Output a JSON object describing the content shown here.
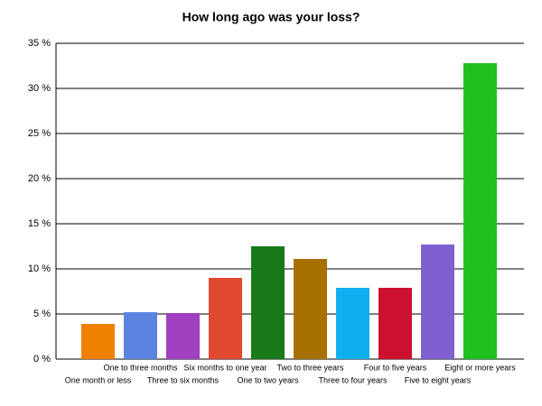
{
  "chart_data": {
    "type": "bar",
    "title": "How long ago was your loss?",
    "categories": [
      "One month or less",
      "One to three months",
      "Three to six months",
      "Six months to one year",
      "One to two years",
      "Two to three years",
      "Three to four years",
      "Four to five years",
      "Five to eight years",
      "Eight or more years"
    ],
    "values": [
      3.9,
      5.2,
      5.1,
      9.0,
      12.5,
      11.1,
      7.9,
      7.9,
      12.7,
      32.8
    ],
    "colors": [
      "#f08000",
      "#5a84e0",
      "#a040c0",
      "#e04830",
      "#1a7a1a",
      "#a87000",
      "#10b0f0",
      "#cc1030",
      "#8060d0",
      "#20c020"
    ],
    "ylim": [
      0,
      35
    ],
    "yticks": [
      {
        "value": 0,
        "label": "0 %"
      },
      {
        "value": 5,
        "label": "5 %"
      },
      {
        "value": 10,
        "label": "10 %"
      },
      {
        "value": 15,
        "label": "15 %"
      },
      {
        "value": 20,
        "label": "20 %"
      },
      {
        "value": 25,
        "label": "25 %"
      },
      {
        "value": 30,
        "label": "30 %"
      },
      {
        "value": 35,
        "label": "35 %"
      }
    ],
    "grid": true
  }
}
